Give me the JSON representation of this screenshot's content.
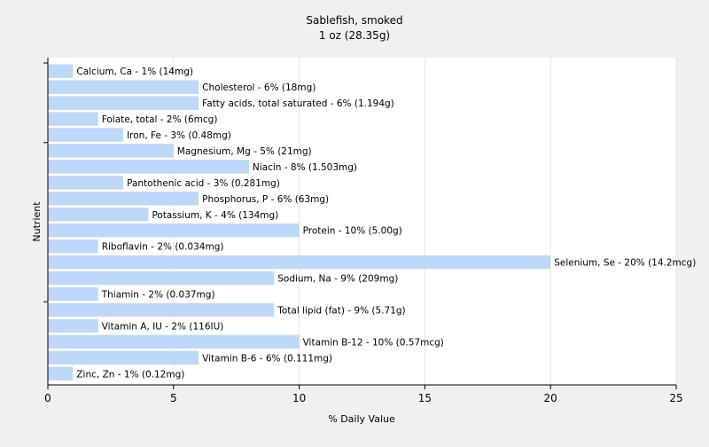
{
  "chart_data": {
    "type": "bar",
    "orientation": "horizontal",
    "title": "Sablefish, smoked",
    "subtitle": "1 oz (28.35g)",
    "xlabel": "% Daily Value",
    "ylabel": "Nutrient",
    "xlim": [
      0,
      25
    ],
    "xticks": [
      0,
      5,
      10,
      15,
      20,
      25
    ],
    "grid": true,
    "bar_color": "#bfd8f8",
    "background": "#f0f0f0",
    "plot_background": "#ffffff",
    "categories": [
      "Calcium, Ca",
      "Cholesterol",
      "Fatty acids, total saturated",
      "Folate, total",
      "Iron, Fe",
      "Magnesium, Mg",
      "Niacin",
      "Pantothenic acid",
      "Phosphorus, P",
      "Potassium, K",
      "Protein",
      "Riboflavin",
      "Selenium, Se",
      "Sodium, Na",
      "Thiamin",
      "Total lipid (fat)",
      "Vitamin A, IU",
      "Vitamin B-12",
      "Vitamin B-6",
      "Zinc, Zn"
    ],
    "values": [
      1,
      6,
      6,
      2,
      3,
      5,
      8,
      3,
      6,
      4,
      10,
      2,
      20,
      9,
      2,
      9,
      2,
      10,
      6,
      1
    ],
    "labels": [
      "Calcium, Ca - 1% (14mg)",
      "Cholesterol - 6% (18mg)",
      "Fatty acids, total saturated - 6% (1.194g)",
      "Folate, total - 2% (6mcg)",
      "Iron, Fe - 3% (0.48mg)",
      "Magnesium, Mg - 5% (21mg)",
      "Niacin - 8% (1.503mg)",
      "Pantothenic acid - 3% (0.281mg)",
      "Phosphorus, P - 6% (63mg)",
      "Potassium, K - 4% (134mg)",
      "Protein - 10% (5.00g)",
      "Riboflavin - 2% (0.034mg)",
      "Selenium, Se - 20% (14.2mcg)",
      "Sodium, Na - 9% (209mg)",
      "Thiamin - 2% (0.037mg)",
      "Total lipid (fat) - 9% (5.71g)",
      "Vitamin A, IU - 2% (116IU)",
      "Vitamin B-12 - 10% (0.57mcg)",
      "Vitamin B-6 - 6% (0.111mg)",
      "Zinc, Zn - 1% (0.12mg)"
    ]
  }
}
